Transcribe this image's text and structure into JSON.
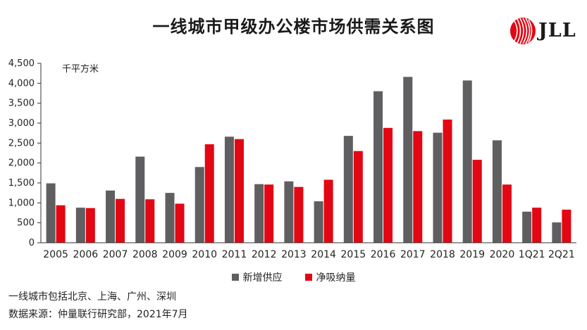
{
  "title": "一线城市甲级办公楼市场供需关系图",
  "logo": {
    "text": "JLL",
    "color": "#e30613"
  },
  "unit_label": "千平方米",
  "footnotes": [
    "一线城市包括北京、上海、广州、深圳",
    "数据来源：仲量联行研究部，2021年7月"
  ],
  "chart_data": {
    "type": "bar",
    "title": "一线城市甲级办公楼市场供需关系图",
    "ylabel": "千平方米",
    "ylim": [
      0,
      4500
    ],
    "yticks": [
      0,
      500,
      1000,
      1500,
      2000,
      2500,
      3000,
      3500,
      4000,
      4500
    ],
    "ytick_labels": [
      "0",
      "500",
      "1,000",
      "1,500",
      "2,000",
      "2,500",
      "3,000",
      "3,500",
      "4,000",
      "4,500"
    ],
    "grid": false,
    "legend": "bottom",
    "categories": [
      "2005",
      "2006",
      "2007",
      "2008",
      "2009",
      "2010",
      "2011",
      "2012",
      "2013",
      "2014",
      "2015",
      "2016",
      "2017",
      "2018",
      "2019",
      "2020",
      "1Q21",
      "2Q21"
    ],
    "series": [
      {
        "name": "新增供应",
        "color": "#5f5f61",
        "values": [
          1490,
          880,
          1310,
          2160,
          1250,
          1900,
          2660,
          1470,
          1540,
          1040,
          2680,
          3800,
          4160,
          2760,
          4070,
          2570,
          780,
          510
        ]
      },
      {
        "name": "净吸纳量",
        "color": "#e30613",
        "values": [
          940,
          870,
          1100,
          1090,
          980,
          2470,
          2600,
          1460,
          1400,
          1580,
          2300,
          2880,
          2800,
          3090,
          2080,
          1460,
          880,
          830
        ]
      }
    ]
  }
}
